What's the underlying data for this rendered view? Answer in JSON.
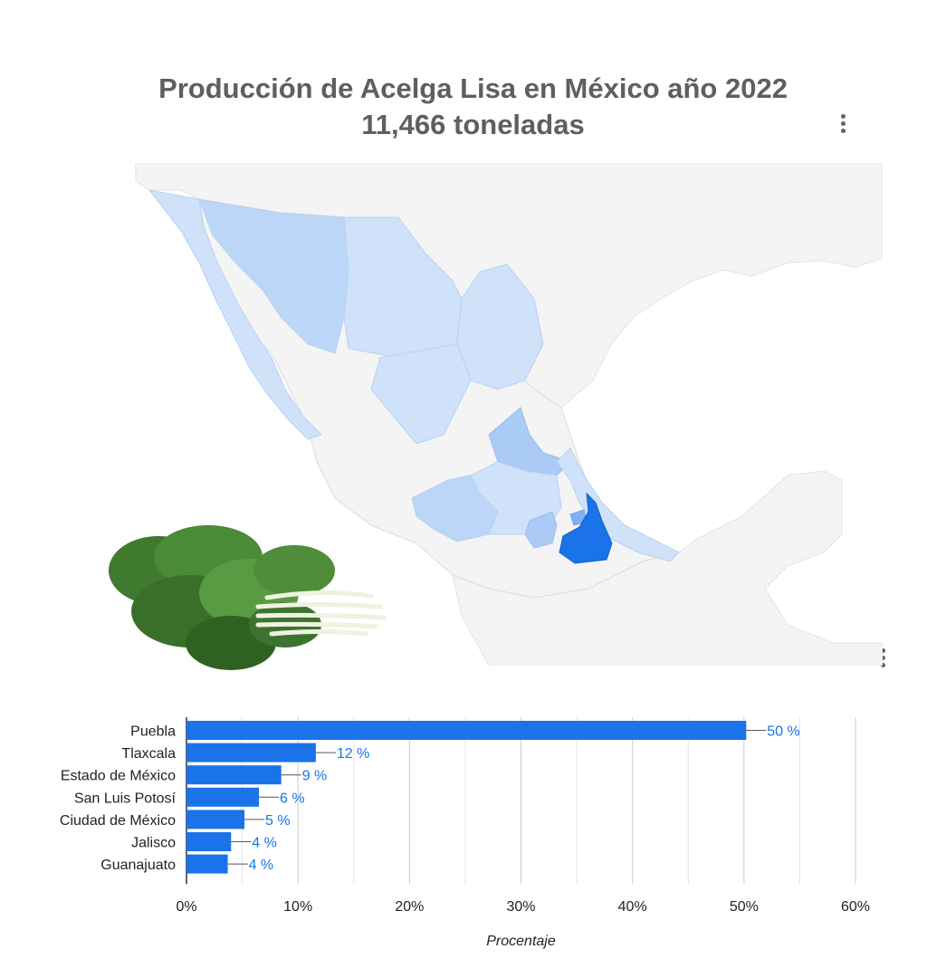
{
  "header": {
    "title_line1": "Producción de Acelga Lisa en México año 2022",
    "title_line2": "11,466 toneladas"
  },
  "menu": {
    "icon": "more-vert-icon"
  },
  "map": {
    "region": "México",
    "highlighted_state": "Puebla",
    "colors": {
      "water": "#ffffff",
      "land_other": "#f4f4f4",
      "border": "#dddddd",
      "state_light": "#cfe2fa",
      "state_mid": "#a9cbf6",
      "state_top": "#1a73e8"
    }
  },
  "image": {
    "icon": "swiss-chard-illustration"
  },
  "chart_data": {
    "type": "bar",
    "orientation": "horizontal",
    "categories": [
      "Puebla",
      "Tlaxcala",
      "Estado de México",
      "San Luis Potosí",
      "Ciudad de México",
      "Jalisco",
      "Guanajuato"
    ],
    "values": [
      50.2,
      11.6,
      8.5,
      6.5,
      5.2,
      4.0,
      3.7
    ],
    "data_labels": [
      "50 %",
      "12 %",
      "9 %",
      "6 %",
      "5 %",
      "4 %",
      "4 %"
    ],
    "xlim": [
      0,
      60
    ],
    "ticks": [
      "0%",
      "10%",
      "20%",
      "30%",
      "40%",
      "50%",
      "60%"
    ],
    "xlabel": "Procentaje",
    "ylabel": "",
    "grid": true,
    "color": "#1a73e8",
    "label_color": "#1a73e8"
  }
}
